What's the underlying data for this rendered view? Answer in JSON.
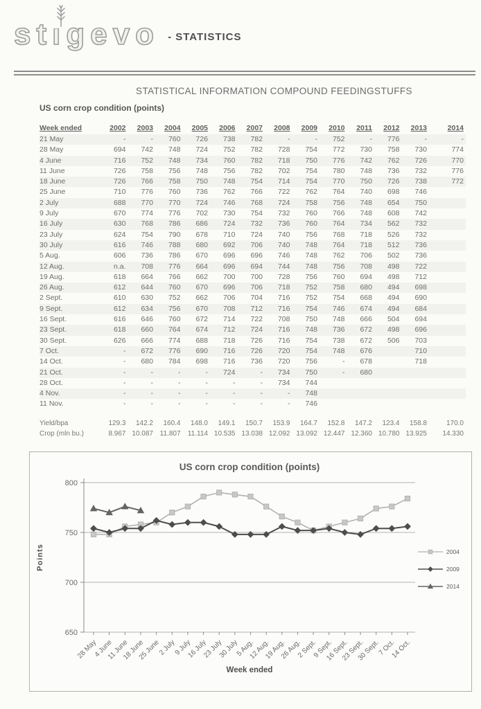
{
  "header": {
    "logo_left": "st",
    "logo_i": "i",
    "logo_right": "gevo",
    "suffix": "- STATISTICS"
  },
  "title": "STATISTICAL INFORMATION COMPOUND FEEDINGSTUFFS",
  "subtitle": "US corn crop condition (points)",
  "table": {
    "week_header": "Week ended",
    "years": [
      "2002",
      "2003",
      "2004",
      "2005",
      "2006",
      "2007",
      "2008",
      "2009",
      "2010",
      "2011",
      "2012",
      "2013",
      "2014"
    ],
    "rows": [
      {
        "week": "21 May",
        "values": [
          "-",
          "-",
          "760",
          "726",
          "738",
          "782",
          "-",
          "-",
          "752",
          "-",
          "776",
          "-",
          "-"
        ]
      },
      {
        "week": "28 May",
        "values": [
          "694",
          "742",
          "748",
          "724",
          "752",
          "782",
          "728",
          "754",
          "772",
          "730",
          "758",
          "730",
          "774"
        ]
      },
      {
        "week": "4 June",
        "values": [
          "716",
          "752",
          "748",
          "734",
          "760",
          "782",
          "718",
          "750",
          "776",
          "742",
          "762",
          "726",
          "770"
        ]
      },
      {
        "week": "11 June",
        "values": [
          "726",
          "758",
          "756",
          "748",
          "756",
          "782",
          "702",
          "754",
          "780",
          "748",
          "736",
          "732",
          "776"
        ]
      },
      {
        "week": "18 June",
        "values": [
          "726",
          "766",
          "758",
          "750",
          "748",
          "754",
          "714",
          "754",
          "770",
          "750",
          "726",
          "738",
          "772"
        ]
      },
      {
        "week": "25 June",
        "values": [
          "710",
          "776",
          "760",
          "736",
          "762",
          "766",
          "722",
          "762",
          "764",
          "740",
          "698",
          "746",
          ""
        ]
      },
      {
        "week": "2 July",
        "values": [
          "688",
          "770",
          "770",
          "724",
          "746",
          "768",
          "724",
          "758",
          "756",
          "748",
          "654",
          "750",
          ""
        ]
      },
      {
        "week": "9 July",
        "values": [
          "670",
          "774",
          "776",
          "702",
          "730",
          "754",
          "732",
          "760",
          "766",
          "748",
          "608",
          "742",
          ""
        ]
      },
      {
        "week": "16 July",
        "values": [
          "630",
          "768",
          "786",
          "686",
          "724",
          "732",
          "736",
          "760",
          "764",
          "734",
          "562",
          "732",
          ""
        ]
      },
      {
        "week": "23 July",
        "values": [
          "624",
          "754",
          "790",
          "678",
          "710",
          "724",
          "740",
          "756",
          "768",
          "718",
          "526",
          "732",
          ""
        ]
      },
      {
        "week": "30 July",
        "values": [
          "616",
          "746",
          "788",
          "680",
          "692",
          "706",
          "740",
          "748",
          "764",
          "718",
          "512",
          "736",
          ""
        ]
      },
      {
        "week": "5 Aug.",
        "values": [
          "606",
          "736",
          "786",
          "670",
          "696",
          "696",
          "746",
          "748",
          "762",
          "706",
          "502",
          "736",
          ""
        ]
      },
      {
        "week": "12 Aug.",
        "values": [
          "n.a.",
          "708",
          "776",
          "664",
          "696",
          "694",
          "744",
          "748",
          "756",
          "708",
          "498",
          "722",
          ""
        ]
      },
      {
        "week": "19 Aug.",
        "values": [
          "618",
          "664",
          "766",
          "662",
          "700",
          "700",
          "728",
          "756",
          "760",
          "694",
          "498",
          "712",
          ""
        ]
      },
      {
        "week": "26 Aug.",
        "values": [
          "612",
          "644",
          "760",
          "670",
          "696",
          "706",
          "718",
          "752",
          "758",
          "680",
          "494",
          "698",
          ""
        ]
      },
      {
        "week": "2 Sept.",
        "values": [
          "610",
          "630",
          "752",
          "662",
          "706",
          "704",
          "716",
          "752",
          "754",
          "668",
          "494",
          "690",
          ""
        ]
      },
      {
        "week": "9 Sept.",
        "values": [
          "612",
          "634",
          "756",
          "670",
          "708",
          "712",
          "716",
          "754",
          "746",
          "674",
          "494",
          "684",
          ""
        ]
      },
      {
        "week": "16 Sept.",
        "values": [
          "616",
          "646",
          "760",
          "672",
          "714",
          "722",
          "708",
          "750",
          "748",
          "666",
          "504",
          "694",
          ""
        ]
      },
      {
        "week": "23 Sept.",
        "values": [
          "618",
          "660",
          "764",
          "674",
          "712",
          "724",
          "716",
          "748",
          "736",
          "672",
          "498",
          "696",
          ""
        ]
      },
      {
        "week": "30 Sept.",
        "values": [
          "626",
          "666",
          "774",
          "688",
          "718",
          "726",
          "716",
          "754",
          "738",
          "672",
          "506",
          "703",
          ""
        ]
      },
      {
        "week": "7 Oct.",
        "values": [
          "-",
          "672",
          "776",
          "690",
          "716",
          "726",
          "720",
          "754",
          "748",
          "676",
          "",
          "710",
          ""
        ]
      },
      {
        "week": "14 Oct.",
        "values": [
          "-",
          "680",
          "784",
          "698",
          "716",
          "736",
          "720",
          "756",
          "-",
          "678",
          "",
          "718",
          ""
        ]
      },
      {
        "week": "21 Oct.",
        "values": [
          "-",
          "-",
          "-",
          "-",
          "724",
          "-",
          "734",
          "750",
          "-",
          "680",
          "",
          "",
          ""
        ]
      },
      {
        "week": "28 Oct.",
        "values": [
          "-",
          "-",
          "-",
          "-",
          "-",
          "-",
          "734",
          "744",
          "",
          "",
          "",
          "",
          ""
        ]
      },
      {
        "week": "4 Nov.",
        "values": [
          "-",
          "-",
          "-",
          "-",
          "-",
          "-",
          "-",
          "748",
          "",
          "",
          "",
          "",
          ""
        ]
      },
      {
        "week": "11 Nov.",
        "values": [
          "-",
          "-",
          "-",
          "-",
          "-",
          "-",
          "-",
          "746",
          "",
          "",
          "",
          "",
          ""
        ]
      }
    ],
    "footer": [
      {
        "label": "Yield/bpa",
        "values": [
          "129.3",
          "142.2",
          "160.4",
          "148.0",
          "149.1",
          "150.7",
          "153.9",
          "164.7",
          "152.8",
          "147.2",
          "123.4",
          "158.8",
          "170.0"
        ]
      },
      {
        "label": "Crop (mln bu.)",
        "values": [
          "8.967",
          "10.087",
          "11.807",
          "11.114",
          "10.535",
          "13.038",
          "12.092",
          "13.092",
          "12.447",
          "12.360",
          "10.780",
          "13.925",
          "14.330"
        ]
      }
    ]
  },
  "chart_data": {
    "type": "line",
    "title": "US corn crop condition (points)",
    "xlabel": "Week ended",
    "ylabel": "Points",
    "ylim": [
      650,
      800
    ],
    "yticks": [
      650,
      700,
      750,
      800
    ],
    "grid": true,
    "legend_position": "right",
    "categories": [
      "28 May",
      "4 June",
      "11 June",
      "18 June",
      "25 June",
      "2 July",
      "9 July",
      "16 July",
      "23 July",
      "30 July",
      "5 Aug.",
      "12 Aug.",
      "19 Aug.",
      "26 Aug.",
      "2 Sept.",
      "9 Sept.",
      "16 Sept.",
      "23 Sept.",
      "30 Sept.",
      "7 Oct.",
      "14 Oct."
    ],
    "series": [
      {
        "name": "2004",
        "marker": "square",
        "color": "#b2b2b0",
        "marker_fill": "#c8c8c6",
        "values": [
          748,
          748,
          756,
          758,
          760,
          770,
          776,
          786,
          790,
          788,
          786,
          776,
          766,
          760,
          752,
          756,
          760,
          764,
          774,
          776,
          784
        ]
      },
      {
        "name": "2009",
        "marker": "diamond",
        "color": "#4d4d4d",
        "marker_fill": "#4d4d4d",
        "values": [
          754,
          750,
          754,
          754,
          762,
          758,
          760,
          760,
          756,
          748,
          748,
          748,
          756,
          752,
          752,
          754,
          750,
          748,
          754,
          754,
          756
        ]
      },
      {
        "name": "2014",
        "marker": "triangle",
        "color": "#646464",
        "marker_fill": "#646464",
        "values": [
          774,
          770,
          776,
          772,
          null,
          null,
          null,
          null,
          null,
          null,
          null,
          null,
          null,
          null,
          null,
          null,
          null,
          null,
          null,
          null,
          null
        ]
      }
    ]
  }
}
